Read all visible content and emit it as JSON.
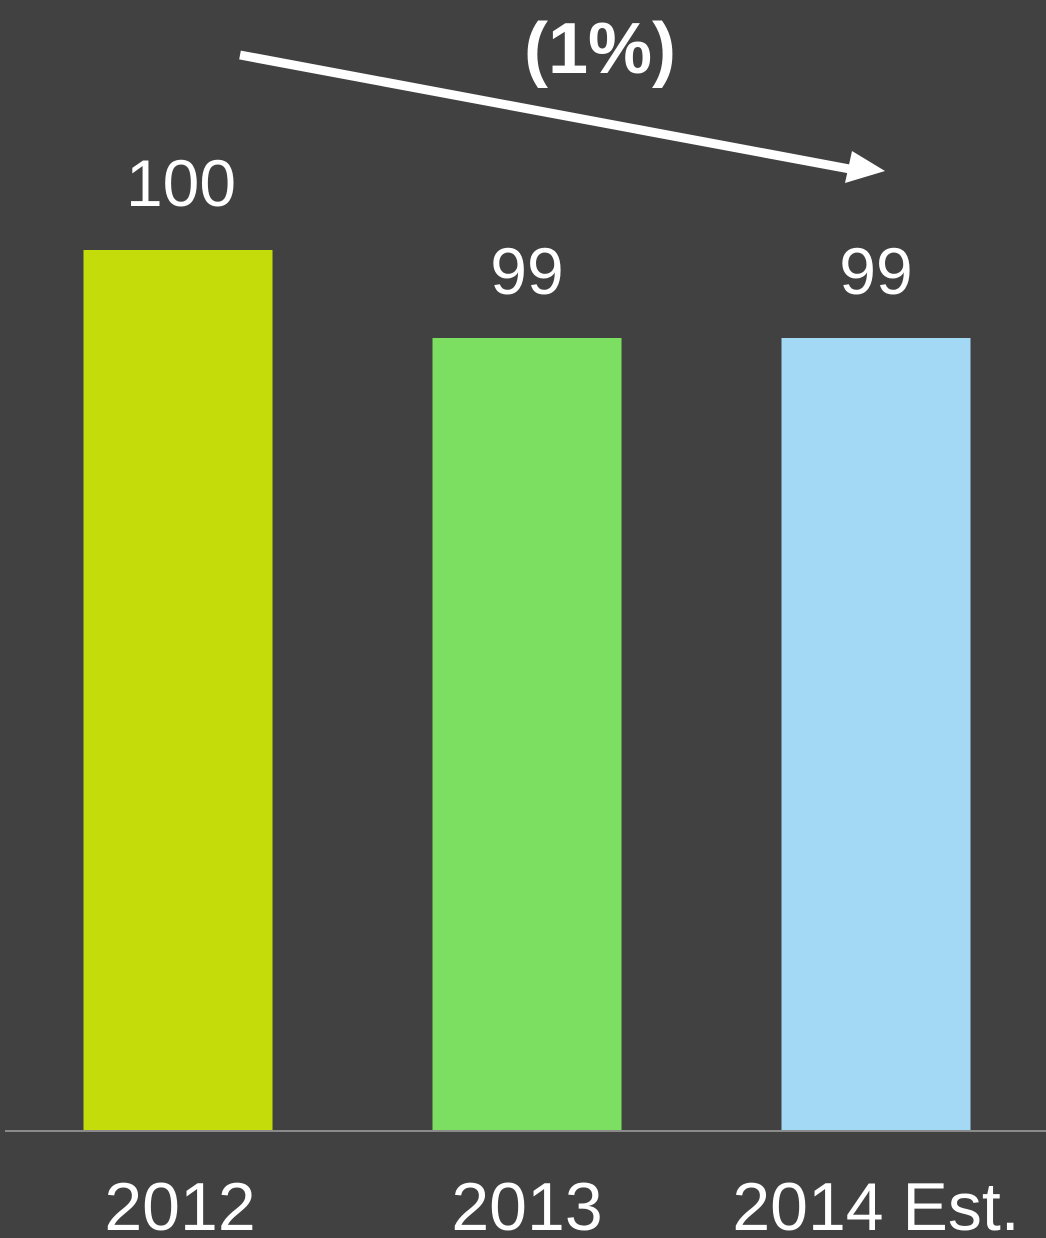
{
  "chart_data": {
    "type": "bar",
    "categories": [
      "2012",
      "2013",
      "2014 Est."
    ],
    "values": [
      100,
      99,
      99
    ],
    "value_labels": [
      "100",
      "99",
      "99"
    ],
    "bar_colors": [
      "#c4dd0a",
      "#7cdf62",
      "#a3d9f5"
    ],
    "annotation": "(1%)",
    "title": "",
    "xlabel": "",
    "ylabel": "",
    "grid": false,
    "legend": "none"
  },
  "colors": {
    "background": "#414141",
    "axis": "#8a8a8a",
    "text": "#ffffff",
    "arrow": "#ffffff"
  }
}
